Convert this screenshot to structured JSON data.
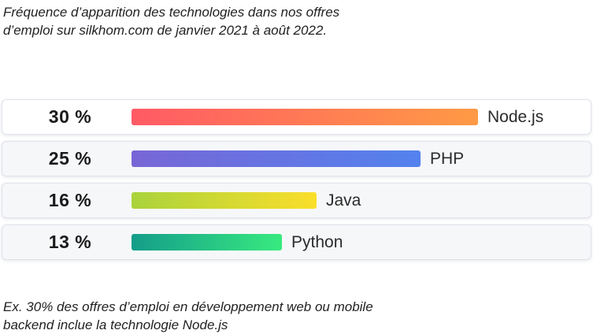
{
  "header": {
    "caption": "Fréquence d’apparition des technologies dans nos offres d’emploi sur silkhom.com de janvier 2021 à août 2022."
  },
  "footer": {
    "note": "Ex. 30% des offres d’emploi en développement web ou mobile backend inclue la technologie Node.js"
  },
  "chart_data": {
    "type": "bar",
    "orientation": "horizontal",
    "unit": "%",
    "categories": [
      "Node.js",
      "PHP",
      "Java",
      "Python"
    ],
    "values": [
      30,
      25,
      16,
      13
    ],
    "value_labels": [
      "30 %",
      "25 %",
      "16 %",
      "13 %"
    ],
    "xlim": [
      0,
      30
    ],
    "grid": false,
    "legend": "none",
    "colors": [
      [
        "#ff5a65",
        "#ff9a45"
      ],
      [
        "#7866d6",
        "#5382ee"
      ],
      [
        "#a9d33c",
        "#fbde2a"
      ],
      [
        "#149d8a",
        "#38ea7f"
      ]
    ]
  }
}
